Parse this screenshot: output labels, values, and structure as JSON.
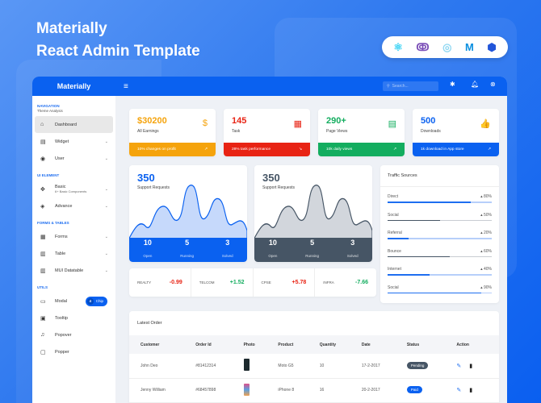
{
  "hero": {
    "line1": "Materially",
    "line2": "React Admin Template"
  },
  "logos": [
    {
      "icon": "react-icon",
      "glyph": "⚛",
      "color": "#3ad3f5"
    },
    {
      "icon": "redux-icon",
      "glyph": "ↂ",
      "color": "#7b4fb8"
    },
    {
      "icon": "saga-icon",
      "glyph": "◎",
      "color": "#8fd7f2"
    },
    {
      "icon": "mui-icon",
      "glyph": "M",
      "color": "#0a8fe0"
    },
    {
      "icon": "data-icon",
      "glyph": "⬢",
      "color": "#2255d9"
    }
  ],
  "topbar": {
    "brand": "Materially",
    "menu_glyph": "≡",
    "search_placeholder": "Search...",
    "settings_glyph": "✱",
    "bell_glyph": "♫",
    "user_glyph": "⊗"
  },
  "sidebar": {
    "nav_title": "Navigation",
    "nav_sub": "Theme Analysis",
    "items_nav": [
      {
        "label": "Dashboard",
        "glyph": "⌂",
        "active": true
      },
      {
        "label": "Widget",
        "glyph": "▤",
        "chev": "⌄"
      },
      {
        "label": "User",
        "glyph": "◉",
        "chev": "⌄"
      }
    ],
    "ui_title": "UI Element",
    "items_ui": [
      {
        "label": "Basic",
        "sub": "6+ Basic Components",
        "glyph": "✥",
        "chev": "⌄"
      },
      {
        "label": "Advance",
        "glyph": "◈",
        "chev": "⌄"
      }
    ],
    "forms_title": "Forms & Tables",
    "items_forms": [
      {
        "label": "Forms",
        "glyph": "▦",
        "chev": "⌄"
      },
      {
        "label": "Table",
        "glyph": "▥",
        "chev": "⌄"
      },
      {
        "label": "MUI Datatable",
        "glyph": "▥",
        "chev": "⌄"
      }
    ],
    "utils_title": "Utils",
    "items_utils": [
      {
        "label": "Modal",
        "glyph": "▭",
        "chip_count": "4",
        "chip_label": "Chip"
      },
      {
        "label": "Tooltip",
        "glyph": "▣"
      },
      {
        "label": "Popover",
        "glyph": "♫"
      },
      {
        "label": "Popper",
        "glyph": "▢"
      }
    ]
  },
  "stats": [
    {
      "value": "$30200",
      "label": "All Earnings",
      "footer": "10% changes on profit",
      "color": "#f5a30c",
      "icon": "$",
      "trend": "↗"
    },
    {
      "value": "145",
      "label": "Task",
      "footer": "28% task performance",
      "color": "#e82314",
      "icon": "▦",
      "trend": "↘"
    },
    {
      "value": "290+",
      "label": "Page Views",
      "footer": "10k daily views",
      "color": "#13ad5f",
      "icon": "▤",
      "trend": "↗"
    },
    {
      "value": "500",
      "label": "Downloads",
      "footer": "1k download in App store",
      "color": "#0a61f0",
      "icon": "👍",
      "trend": "↗"
    }
  ],
  "support_cards": [
    {
      "value": "350",
      "label": "Support Requests",
      "color": "#0a61f0",
      "fill": "#c6d9fb",
      "stats": [
        {
          "n": "10",
          "l": "Open"
        },
        {
          "n": "5",
          "l": "Running"
        },
        {
          "n": "3",
          "l": "Solved"
        }
      ]
    },
    {
      "value": "350",
      "label": "Support Requests",
      "color": "#465565",
      "fill": "#d2d6dc",
      "stats": [
        {
          "n": "10",
          "l": "Open"
        },
        {
          "n": "5",
          "l": "Running"
        },
        {
          "n": "3",
          "l": "Solved"
        }
      ]
    }
  ],
  "traffic": {
    "title": "Traffic Sources",
    "rows": [
      {
        "name": "Direct",
        "pct": "80%",
        "value": 80,
        "fill": "#1e6ef0",
        "track": "#b6cffa"
      },
      {
        "name": "Social",
        "pct": "50%",
        "value": 50,
        "fill": "#465565",
        "track": "#c8ccd2"
      },
      {
        "name": "Referral",
        "pct": "20%",
        "value": 20,
        "fill": "#1e6ef0",
        "track": "#b6cffa"
      },
      {
        "name": "Bounce",
        "pct": "60%",
        "value": 60,
        "fill": "#465565",
        "track": "#c8ccd2"
      },
      {
        "name": "Internet",
        "pct": "40%",
        "value": 40,
        "fill": "#1e6ef0",
        "track": "#b6cffa"
      },
      {
        "name": "Social",
        "pct": "90%",
        "value": 90,
        "fill": "#1e6ef0",
        "track": "#b6cffa"
      }
    ]
  },
  "markets": [
    {
      "name": "REALTY",
      "value": "-0.99",
      "color": "#e82314"
    },
    {
      "name": "TELCOM",
      "value": "+1.52",
      "color": "#13ad5f"
    },
    {
      "name": "CPSE",
      "value": "+5.78",
      "color": "#e82314"
    },
    {
      "name": "INFRA",
      "value": "-7.66",
      "color": "#13ad5f"
    }
  ],
  "orders": {
    "title": "Latest Order",
    "columns": [
      "Customer",
      "Order Id",
      "Photo",
      "Product",
      "Quantity",
      "Date",
      "Status",
      "Action"
    ],
    "rows": [
      {
        "customer": "John Deo",
        "order_id": "#81412314",
        "photo": "#1d2a2e",
        "product": "Moto G5",
        "quantity": "10",
        "date": "17-2-2017",
        "status": "Pending",
        "status_color": "#465565"
      },
      {
        "customer": "Jenny William",
        "order_id": "#68457898",
        "photo": "linear-gradient(#e0508a,#5aa0e0,#f0a050)",
        "product": "iPhone 8",
        "quantity": "16",
        "date": "20-2-2017",
        "status": "Paid",
        "status_color": "#0a61f0"
      }
    ],
    "edit_glyph": "✎",
    "delete_glyph": "🗑"
  }
}
